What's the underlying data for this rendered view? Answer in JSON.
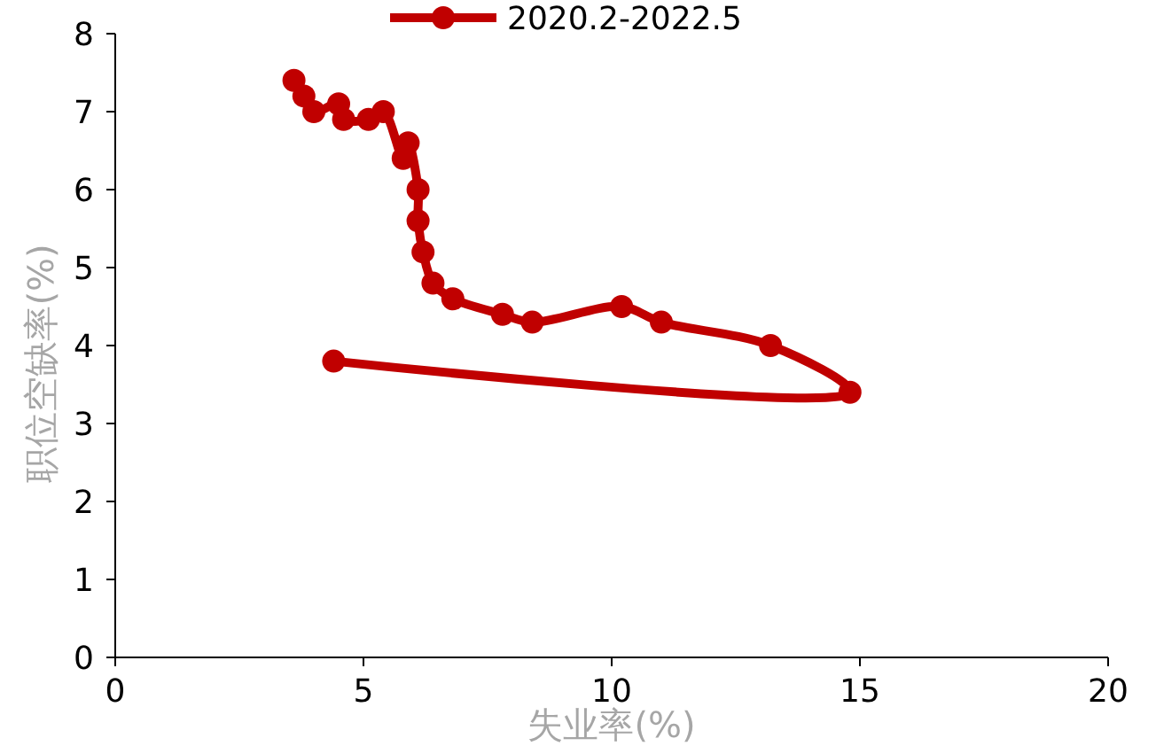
{
  "chart_data": {
    "type": "line",
    "xlabel": "失业率(%)",
    "ylabel": "职位空缺率(%)",
    "x": [
      4.4,
      14.8,
      13.2,
      11.0,
      10.2,
      8.4,
      7.8,
      6.8,
      6.4,
      6.2,
      6.1,
      6.1,
      5.9,
      5.8,
      5.4,
      5.1,
      4.6,
      4.5,
      4.0,
      3.8,
      3.6
    ],
    "series": [
      {
        "name": "2020.2-2022.5",
        "color": "#c00000",
        "values": [
          3.8,
          3.4,
          4.0,
          4.3,
          4.5,
          4.3,
          4.4,
          4.6,
          4.8,
          5.2,
          5.6,
          6.0,
          6.6,
          6.4,
          7.0,
          6.9,
          6.9,
          7.1,
          7.0,
          7.2,
          7.4
        ]
      }
    ],
    "xlim": [
      0,
      20
    ],
    "xticks": [
      0,
      5,
      10,
      15,
      20
    ],
    "ylim": [
      0,
      8
    ],
    "yticks": [
      0,
      1,
      2,
      3,
      4,
      5,
      6,
      7,
      8
    ],
    "marker": "circle",
    "legend": "top",
    "grid": false
  }
}
